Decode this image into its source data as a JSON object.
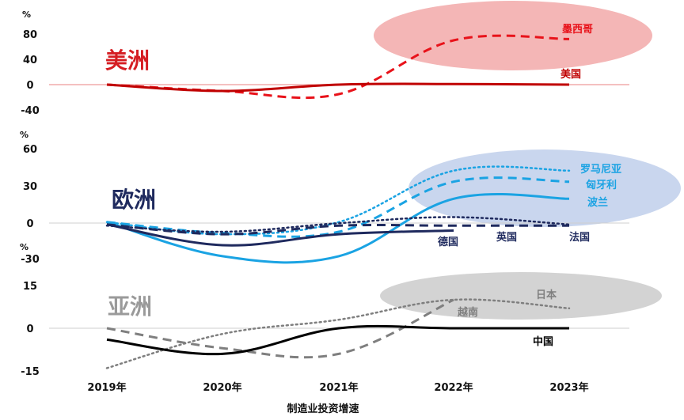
{
  "chart_data": [
    {
      "type": "line",
      "title": "美洲",
      "x": [
        "2019年",
        "2020年",
        "2021年",
        "2022年",
        "2023年"
      ],
      "unit": "%",
      "ylim": [
        -40,
        80
      ],
      "yticks": [
        "80",
        "40",
        "0",
        "-40"
      ],
      "series": [
        {
          "name": "墨西哥",
          "color": "#e8121a",
          "style": "dash",
          "values": [
            0,
            -10,
            -15,
            70,
            72
          ]
        },
        {
          "name": "美国",
          "color": "#c00000",
          "style": "solid",
          "values": [
            0,
            -10,
            0,
            1,
            0
          ]
        }
      ]
    },
    {
      "type": "line",
      "title": "欧洲",
      "x": [
        "2019年",
        "2020年",
        "2021年",
        "2022年",
        "2023年"
      ],
      "unit": "%",
      "ylim": [
        -30,
        60
      ],
      "yticks": [
        "60",
        "30",
        "0",
        "-30"
      ],
      "series": [
        {
          "name": "罗马尼亚",
          "color": "#1aa3e3",
          "style": "dot",
          "values": [
            0,
            -10,
            0,
            42,
            42
          ]
        },
        {
          "name": "匈牙利",
          "color": "#1aa3e3",
          "style": "dash",
          "values": [
            0,
            -9,
            -8,
            33,
            33
          ]
        },
        {
          "name": "波兰",
          "color": "#1aa3e3",
          "style": "solid",
          "values": [
            0,
            -28,
            -28,
            19,
            19
          ]
        },
        {
          "name": "德国",
          "color": "#1f2a5e",
          "style": "solid",
          "values": [
            -2,
            -19,
            -10,
            -7,
            null
          ]
        },
        {
          "name": "英国",
          "color": "#1f2a5e",
          "style": "dash",
          "values": [
            -2,
            -10,
            -3,
            -3,
            -3
          ]
        },
        {
          "name": "法国",
          "color": "#1f2a5e",
          "style": "dot",
          "values": [
            -3,
            -8,
            -1,
            4,
            -2
          ]
        }
      ]
    },
    {
      "type": "line",
      "title": "亚洲",
      "x": [
        "2019年",
        "2020年",
        "2021年",
        "2022年",
        "2023年"
      ],
      "unit": "%",
      "ylim": [
        -15,
        15
      ],
      "yticks": [
        "15",
        "0",
        "-15"
      ],
      "series": [
        {
          "name": "日本",
          "color": "#7f7f7f",
          "style": "dot",
          "values": [
            -14,
            -2,
            3,
            10,
            7
          ]
        },
        {
          "name": "越南",
          "color": "#7f7f7f",
          "style": "dash",
          "values": [
            0,
            -7,
            -9,
            10,
            null
          ]
        },
        {
          "name": "中国",
          "color": "#000000",
          "style": "solid",
          "values": [
            -4,
            -9,
            0,
            0,
            0
          ]
        }
      ]
    }
  ],
  "xlabel": "制造业投资增速",
  "colors": {
    "americas_highlight": "#f4b6b6",
    "europe_highlight": "#c9d6ee",
    "asia_highlight": "#d3d3d3",
    "americas_title": "#d51d22",
    "europe_title": "#1f2a5e",
    "asia_title": "#9a9a9a",
    "axis_line_red": "#e88080",
    "axis_line_grey": "#cfcfcf"
  }
}
